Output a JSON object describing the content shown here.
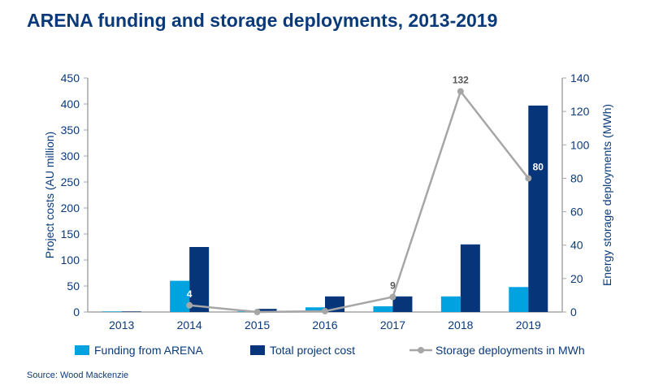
{
  "title": "ARENA funding and storage deployments, 2013-2019",
  "source": "Source: Wood Mackenzie",
  "chart_data": {
    "type": "bar",
    "categories": [
      "2013",
      "2014",
      "2015",
      "2016",
      "2017",
      "2018",
      "2019"
    ],
    "series": [
      {
        "name": "Funding from ARENA",
        "type": "bar",
        "axis": "left",
        "color": "#00a3e0",
        "values": [
          1,
          60,
          1,
          9,
          11,
          30,
          48
        ]
      },
      {
        "name": "Total project cost",
        "type": "bar",
        "axis": "left",
        "color": "#06357a",
        "values": [
          1,
          125,
          6,
          30,
          30,
          130,
          397
        ]
      },
      {
        "name": "Storage deployments in MWh",
        "type": "line",
        "axis": "right",
        "color": "#a6a6a6",
        "values": [
          null,
          4,
          0,
          0.5,
          9,
          132,
          80
        ]
      }
    ],
    "data_labels": [
      {
        "category": "2014",
        "text": "4"
      },
      {
        "category": "2017",
        "text": "9"
      },
      {
        "category": "2018",
        "text": "132"
      },
      {
        "category": "2019",
        "text": "80"
      }
    ],
    "ylabel": "Project costs (AU million)",
    "y2label": "Energy storage deployments (MWh)",
    "ylim": [
      0,
      450
    ],
    "yticks": [
      0,
      50,
      100,
      150,
      200,
      250,
      300,
      350,
      400,
      450
    ],
    "y2lim": [
      0,
      140
    ],
    "y2ticks": [
      0,
      20,
      40,
      60,
      80,
      100,
      120,
      140
    ],
    "grid": false,
    "legend": "bottom"
  }
}
